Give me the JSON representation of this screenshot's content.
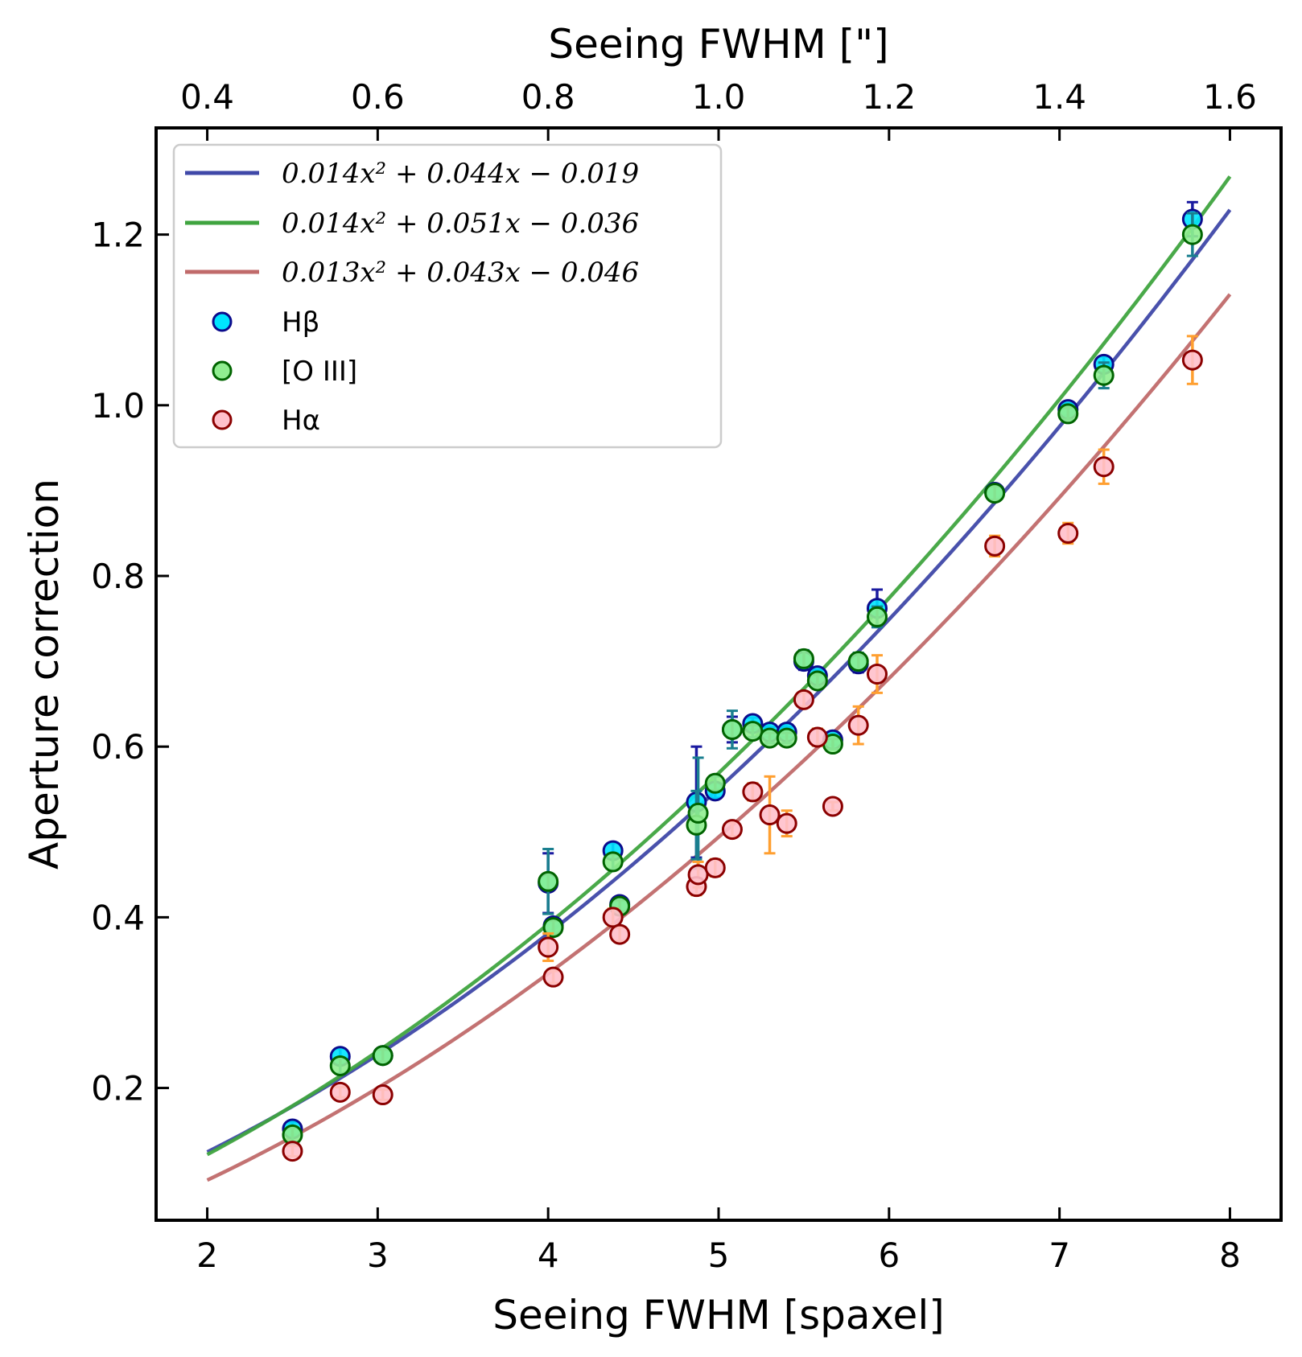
{
  "chart_data": {
    "type": "scatter",
    "xlabel": "Seeing FWHM [spaxel]",
    "ylabel": "Aperture correction",
    "top_xlabel": "Seeing FWHM [\"]",
    "xlim": [
      1.7,
      8.3
    ],
    "ylim": [
      0.045,
      1.325
    ],
    "x_ticks": [
      2,
      3,
      4,
      5,
      6,
      7,
      8
    ],
    "x_tick_labels": [
      "2",
      "3",
      "4",
      "5",
      "6",
      "7",
      "8"
    ],
    "y_ticks": [
      0.2,
      0.4,
      0.6,
      0.8,
      1.0,
      1.2
    ],
    "y_tick_labels": [
      "0.2",
      "0.4",
      "0.6",
      "0.8",
      "1.0",
      "1.2"
    ],
    "top_x_ticks_arcsec": [
      0.4,
      0.6,
      0.8,
      1.0,
      1.2,
      1.4,
      1.6
    ],
    "top_x_tick_labels": [
      "0.4",
      "0.6",
      "0.8",
      "1.0",
      "1.2",
      "1.4",
      "1.6"
    ],
    "top_axis_scale_spaxel_per_arcsec": 5,
    "grid": false,
    "legend_position": "upper-left",
    "fits": [
      {
        "label": "0.014x² + 0.044x − 0.019",
        "coef": [
          0.014,
          0.044,
          -0.019
        ],
        "color": "#3f48a8",
        "x_range": [
          2,
          8
        ]
      },
      {
        "label": "0.014x² + 0.051x − 0.036",
        "coef": [
          0.014,
          0.051,
          -0.036
        ],
        "color": "#3fa43f",
        "x_range": [
          2,
          8
        ]
      },
      {
        "label": "0.013x² + 0.043x − 0.046",
        "coef": [
          0.013,
          0.043,
          -0.046
        ],
        "color": "#c06a6a",
        "x_range": [
          2,
          8
        ]
      }
    ],
    "series": [
      {
        "name": "Hβ",
        "face_color": "#00e5ff",
        "edge_color": "#0b0b8c",
        "err_color": "#1a1aa0",
        "points": [
          {
            "x": 2.5,
            "y": 0.152,
            "err": 0.008
          },
          {
            "x": 2.78,
            "y": 0.237,
            "err": 0.009
          },
          {
            "x": 3.03,
            "y": 0.238,
            "err": 0.007
          },
          {
            "x": 4.0,
            "y": 0.44,
            "err": 0.035
          },
          {
            "x": 4.03,
            "y": 0.39,
            "err": 0.008
          },
          {
            "x": 4.38,
            "y": 0.478,
            "err": 0.009
          },
          {
            "x": 4.42,
            "y": 0.415,
            "err": 0.007
          },
          {
            "x": 4.87,
            "y": 0.535,
            "err": 0.065
          },
          {
            "x": 4.98,
            "y": 0.548,
            "err": 0.008
          },
          {
            "x": 5.08,
            "y": 0.62,
            "err": 0.015
          },
          {
            "x": 5.2,
            "y": 0.627,
            "err": 0.007
          },
          {
            "x": 5.3,
            "y": 0.617,
            "err": 0.006
          },
          {
            "x": 5.4,
            "y": 0.617,
            "err": 0.006
          },
          {
            "x": 5.5,
            "y": 0.7,
            "err": 0.01
          },
          {
            "x": 5.58,
            "y": 0.683,
            "err": 0.007
          },
          {
            "x": 5.67,
            "y": 0.608,
            "err": 0.006
          },
          {
            "x": 5.82,
            "y": 0.697,
            "err": 0.01
          },
          {
            "x": 5.93,
            "y": 0.762,
            "err": 0.022
          },
          {
            "x": 6.62,
            "y": 0.898,
            "err": 0.008
          },
          {
            "x": 7.05,
            "y": 0.995,
            "err": 0.007
          },
          {
            "x": 7.26,
            "y": 1.048,
            "err": 0.009
          },
          {
            "x": 7.78,
            "y": 1.218,
            "err": 0.02
          }
        ]
      },
      {
        "name": "[O III]",
        "face_color": "#90ee90",
        "edge_color": "#006400",
        "err_color": "#1a7f8f",
        "points": [
          {
            "x": 2.5,
            "y": 0.145,
            "err": 0.008
          },
          {
            "x": 2.78,
            "y": 0.226,
            "err": 0.009
          },
          {
            "x": 3.03,
            "y": 0.238,
            "err": 0.007
          },
          {
            "x": 4.0,
            "y": 0.442,
            "err": 0.038
          },
          {
            "x": 4.03,
            "y": 0.388,
            "err": 0.008
          },
          {
            "x": 4.38,
            "y": 0.465,
            "err": 0.009
          },
          {
            "x": 4.42,
            "y": 0.413,
            "err": 0.007
          },
          {
            "x": 4.87,
            "y": 0.508,
            "err": 0.04
          },
          {
            "x": 4.88,
            "y": 0.522,
            "err": 0.065
          },
          {
            "x": 4.98,
            "y": 0.557,
            "err": 0.008
          },
          {
            "x": 5.08,
            "y": 0.62,
            "err": 0.022
          },
          {
            "x": 5.2,
            "y": 0.618,
            "err": 0.007
          },
          {
            "x": 5.3,
            "y": 0.61,
            "err": 0.006
          },
          {
            "x": 5.4,
            "y": 0.61,
            "err": 0.006
          },
          {
            "x": 5.5,
            "y": 0.703,
            "err": 0.01
          },
          {
            "x": 5.58,
            "y": 0.677,
            "err": 0.007
          },
          {
            "x": 5.67,
            "y": 0.603,
            "err": 0.006
          },
          {
            "x": 5.82,
            "y": 0.7,
            "err": 0.01
          },
          {
            "x": 5.93,
            "y": 0.752,
            "err": 0.012
          },
          {
            "x": 6.62,
            "y": 0.897,
            "err": 0.008
          },
          {
            "x": 7.05,
            "y": 0.99,
            "err": 0.007
          },
          {
            "x": 7.26,
            "y": 1.035,
            "err": 0.015
          },
          {
            "x": 7.78,
            "y": 1.2,
            "err": 0.025
          }
        ]
      },
      {
        "name": "Hα",
        "face_color": "#ffc0cb",
        "edge_color": "#8b0000",
        "err_color": "#ff9f30",
        "points": [
          {
            "x": 2.5,
            "y": 0.126,
            "err": 0.006
          },
          {
            "x": 2.78,
            "y": 0.195,
            "err": 0.006
          },
          {
            "x": 3.03,
            "y": 0.192,
            "err": 0.006
          },
          {
            "x": 4.0,
            "y": 0.365,
            "err": 0.016
          },
          {
            "x": 4.03,
            "y": 0.33,
            "err": 0.007
          },
          {
            "x": 4.38,
            "y": 0.4,
            "err": 0.01
          },
          {
            "x": 4.42,
            "y": 0.38,
            "err": 0.008
          },
          {
            "x": 4.87,
            "y": 0.436,
            "err": 0.01
          },
          {
            "x": 4.88,
            "y": 0.45,
            "err": 0.015
          },
          {
            "x": 4.98,
            "y": 0.458,
            "err": 0.01
          },
          {
            "x": 5.08,
            "y": 0.503,
            "err": 0.008
          },
          {
            "x": 5.2,
            "y": 0.547,
            "err": 0.01
          },
          {
            "x": 5.3,
            "y": 0.52,
            "err": 0.045
          },
          {
            "x": 5.4,
            "y": 0.51,
            "err": 0.015
          },
          {
            "x": 5.5,
            "y": 0.655,
            "err": 0.008
          },
          {
            "x": 5.58,
            "y": 0.611,
            "err": 0.01
          },
          {
            "x": 5.67,
            "y": 0.53,
            "err": 0.005
          },
          {
            "x": 5.82,
            "y": 0.625,
            "err": 0.022
          },
          {
            "x": 5.93,
            "y": 0.685,
            "err": 0.022
          },
          {
            "x": 6.62,
            "y": 0.835,
            "err": 0.012
          },
          {
            "x": 7.05,
            "y": 0.85,
            "err": 0.012
          },
          {
            "x": 7.26,
            "y": 0.928,
            "err": 0.02
          },
          {
            "x": 7.78,
            "y": 1.053,
            "err": 0.028
          }
        ]
      }
    ]
  }
}
